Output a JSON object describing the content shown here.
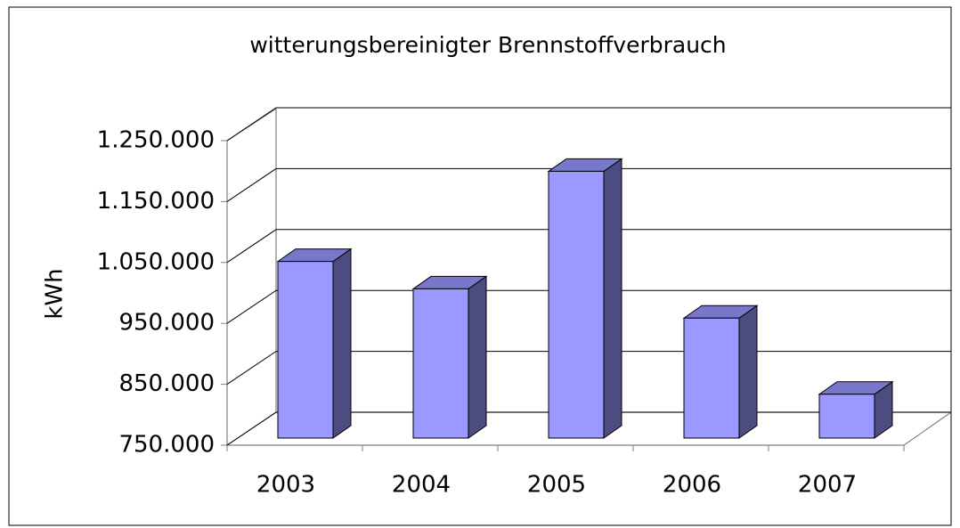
{
  "chart_data": {
    "type": "bar3d",
    "title": "witterungsbereinigter Brennstoffverbrauch",
    "y_label": "kWh",
    "categories": [
      "2003",
      "2004",
      "2005",
      "2006",
      "2007"
    ],
    "values": [
      1040000,
      995000,
      1188000,
      947000,
      822000
    ],
    "color": "#9999ff",
    "ylim": [
      750000,
      1250000
    ],
    "yticks": [
      {
        "value": 750000,
        "label": "750.000"
      },
      {
        "value": 850000,
        "label": "850.000"
      },
      {
        "value": 950000,
        "label": "950.000"
      },
      {
        "value": 1050000,
        "label": "1.050.000"
      },
      {
        "value": 1150000,
        "label": "1.150.000"
      },
      {
        "value": 1250000,
        "label": "1.250.000"
      }
    ],
    "grid": true
  }
}
